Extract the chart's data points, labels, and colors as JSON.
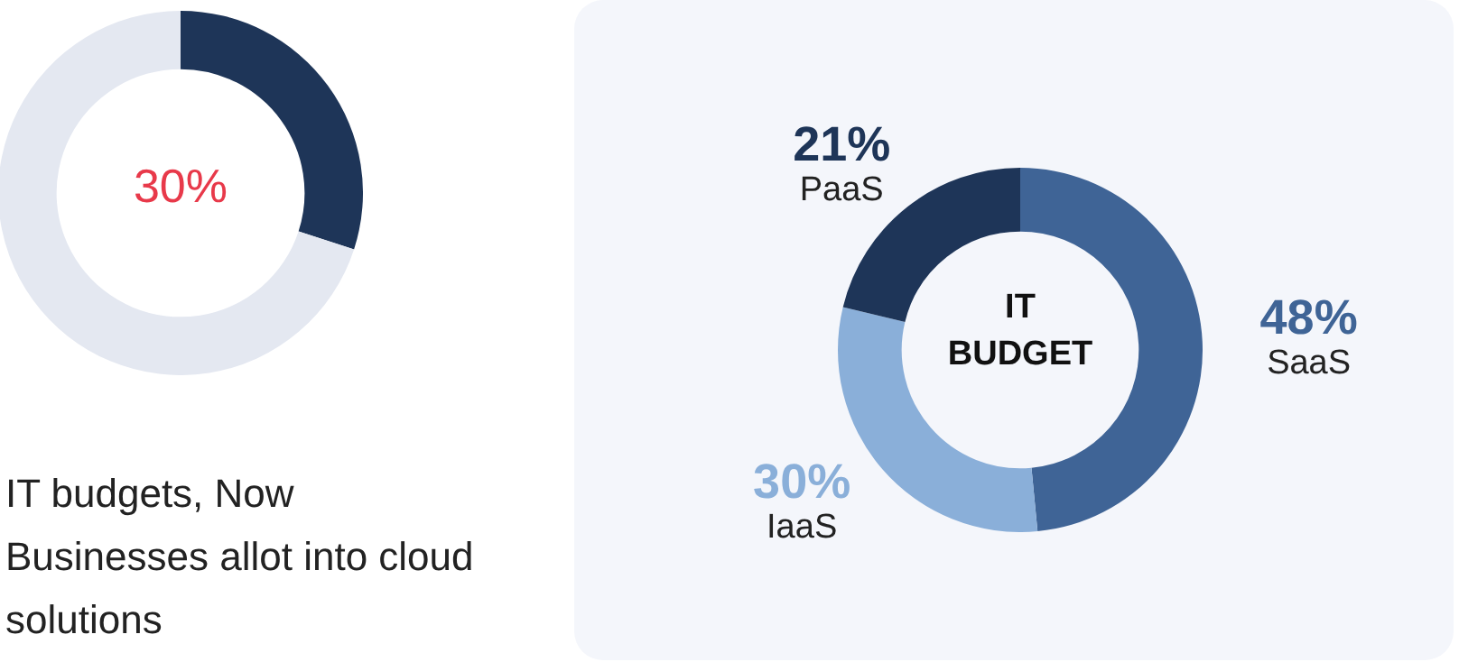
{
  "chart_data": [
    {
      "type": "donut",
      "categories": [
        null,
        null
      ],
      "values": [
        30,
        70
      ],
      "colors": [
        "#1e3558",
        "#e4e8f1"
      ],
      "value_labels": [
        "30%",
        null
      ],
      "annotations": [
        "IT budgets,  Now Businesses allot into cloud solutions"
      ]
    },
    {
      "type": "donut",
      "title": "IT BUDGET",
      "categories": [
        "SaaS",
        "IaaS",
        "PaaS"
      ],
      "values": [
        48,
        30,
        21
      ],
      "colors": [
        "#3f6496",
        "#8aafd9",
        "#1e3558"
      ],
      "value_labels": [
        "48%",
        "30%",
        "21%"
      ]
    }
  ]
}
